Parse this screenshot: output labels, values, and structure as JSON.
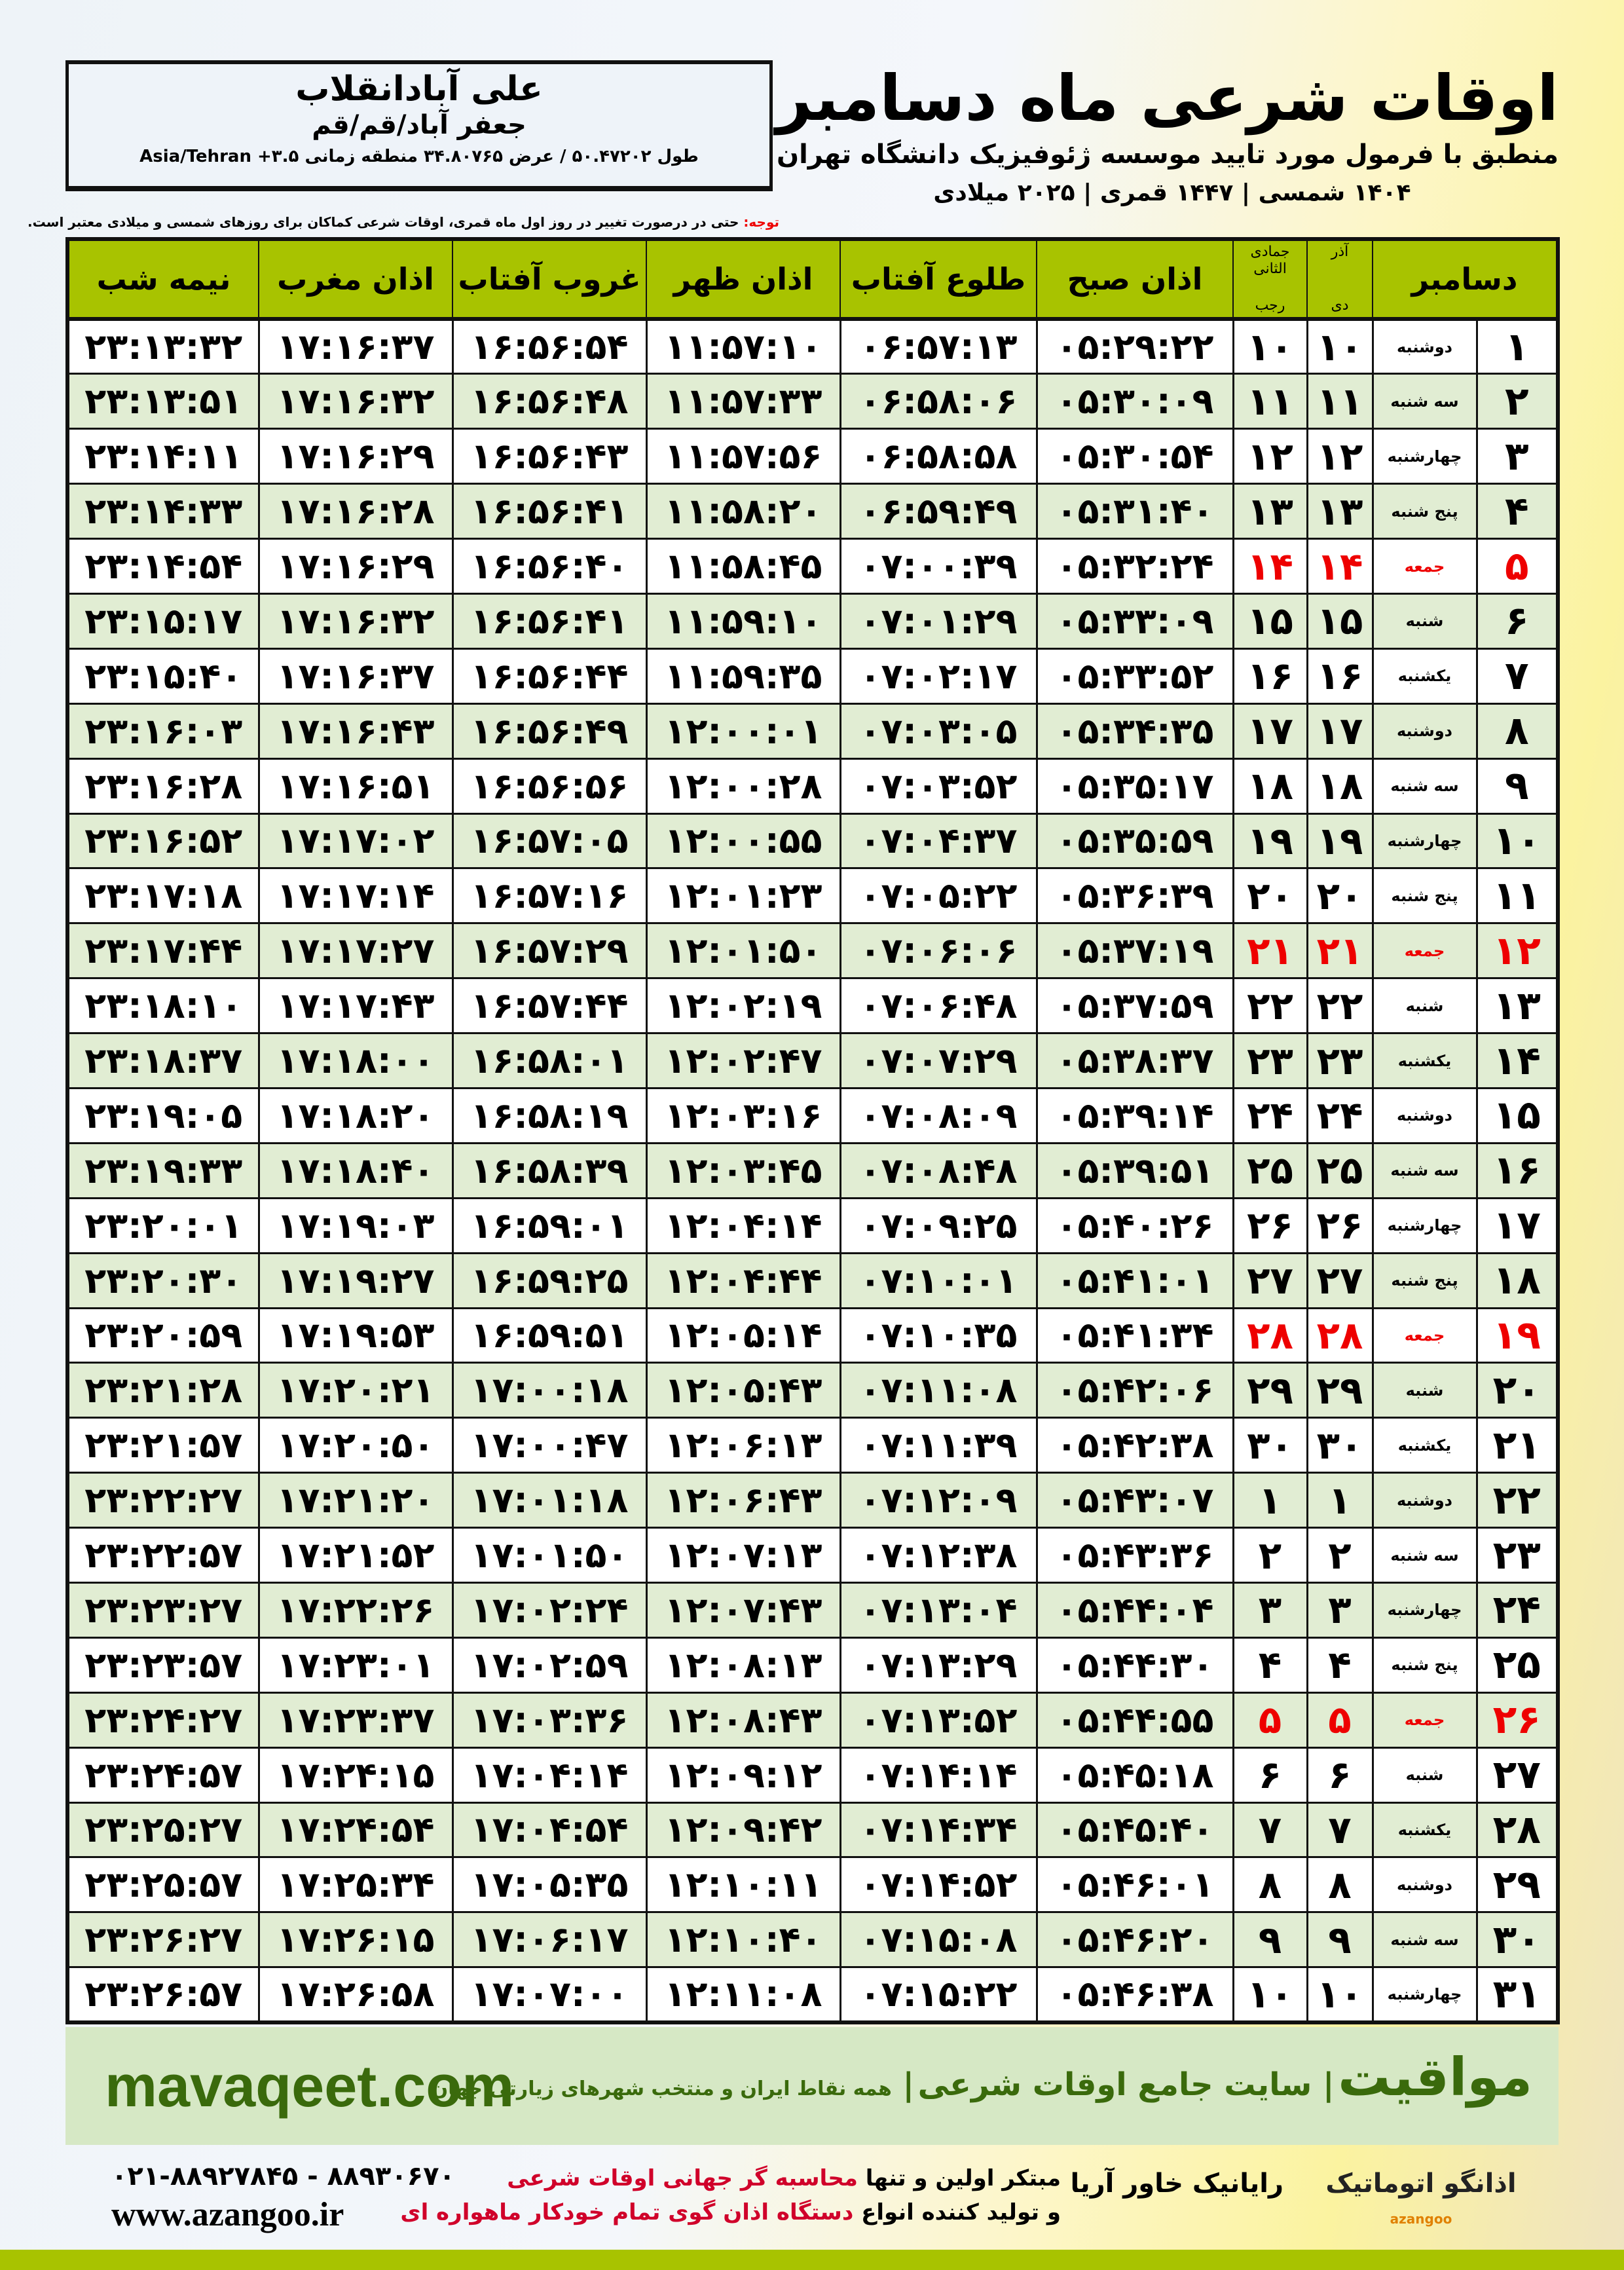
{
  "location": {
    "name": "علی آبادانقلاب",
    "region": "جعفر آباد/قم/قم",
    "coords": "طول ۵۰.۴۷۲۰۲ / عرض ۳۴.۸۰۷۶۵ منطقه زمانی ۳.۵+ Asia/Tehran"
  },
  "header": {
    "title": "اوقات شرعی ماه دسامبر",
    "subtitle": "منطبق با فرمول مورد تایید موسسه ژئوفیزیک دانشگاه تهران",
    "years": "۱۴۰۴ شمسی | ۱۴۴۷ قمری | ۲۰۲۵ میلادی"
  },
  "note": {
    "label": "توجه:",
    "text": "حتی در درصورت تغییر در روز اول ماه قمری، اوقات شرعی کماکان برای روزهای شمسی و میلادی معتبر است."
  },
  "columns": {
    "month": "دسامبر",
    "solar": "آذر",
    "solar2": "دی",
    "lunar": "جمادی الثانی",
    "lunar2": "رجب",
    "fajr": "اذان صبح",
    "sunrise": "طلوع آفتاب",
    "dhuhr": "اذان ظهر",
    "sunset": "غروب آفتاب",
    "maghrib": "اذان مغرب",
    "midnight": "نیمه شب"
  },
  "colors": {
    "header": "#a8c300",
    "alt_row": "#e1edd3",
    "friday": "#e00000",
    "brand": "#3a6a0c"
  },
  "rows": [
    [
      "۱",
      "دوشنبه",
      "۱۰",
      "۱۰",
      "۰۵:۲۹:۲۲",
      "۰۶:۵۷:۱۳",
      "۱۱:۵۷:۱۰",
      "۱۶:۵۶:۵۴",
      "۱۷:۱۶:۳۷",
      "۲۳:۱۳:۳۲"
    ],
    [
      "۲",
      "سه شنبه",
      "۱۱",
      "۱۱",
      "۰۵:۳۰:۰۹",
      "۰۶:۵۸:۰۶",
      "۱۱:۵۷:۳۳",
      "۱۶:۵۶:۴۸",
      "۱۷:۱۶:۳۲",
      "۲۳:۱۳:۵۱"
    ],
    [
      "۳",
      "چهارشنبه",
      "۱۲",
      "۱۲",
      "۰۵:۳۰:۵۴",
      "۰۶:۵۸:۵۸",
      "۱۱:۵۷:۵۶",
      "۱۶:۵۶:۴۳",
      "۱۷:۱۶:۲۹",
      "۲۳:۱۴:۱۱"
    ],
    [
      "۴",
      "پنج شنبه",
      "۱۳",
      "۱۳",
      "۰۵:۳۱:۴۰",
      "۰۶:۵۹:۴۹",
      "۱۱:۵۸:۲۰",
      "۱۶:۵۶:۴۱",
      "۱۷:۱۶:۲۸",
      "۲۳:۱۴:۳۳"
    ],
    [
      "۵",
      "جمعه",
      "۱۴",
      "۱۴",
      "۰۵:۳۲:۲۴",
      "۰۷:۰۰:۳۹",
      "۱۱:۵۸:۴۵",
      "۱۶:۵۶:۴۰",
      "۱۷:۱۶:۲۹",
      "۲۳:۱۴:۵۴"
    ],
    [
      "۶",
      "شنبه",
      "۱۵",
      "۱۵",
      "۰۵:۳۳:۰۹",
      "۰۷:۰۱:۲۹",
      "۱۱:۵۹:۱۰",
      "۱۶:۵۶:۴۱",
      "۱۷:۱۶:۳۲",
      "۲۳:۱۵:۱۷"
    ],
    [
      "۷",
      "یکشنبه",
      "۱۶",
      "۱۶",
      "۰۵:۳۳:۵۲",
      "۰۷:۰۲:۱۷",
      "۱۱:۵۹:۳۵",
      "۱۶:۵۶:۴۴",
      "۱۷:۱۶:۳۷",
      "۲۳:۱۵:۴۰"
    ],
    [
      "۸",
      "دوشنبه",
      "۱۷",
      "۱۷",
      "۰۵:۳۴:۳۵",
      "۰۷:۰۳:۰۵",
      "۱۲:۰۰:۰۱",
      "۱۶:۵۶:۴۹",
      "۱۷:۱۶:۴۳",
      "۲۳:۱۶:۰۳"
    ],
    [
      "۹",
      "سه شنبه",
      "۱۸",
      "۱۸",
      "۰۵:۳۵:۱۷",
      "۰۷:۰۳:۵۲",
      "۱۲:۰۰:۲۸",
      "۱۶:۵۶:۵۶",
      "۱۷:۱۶:۵۱",
      "۲۳:۱۶:۲۸"
    ],
    [
      "۱۰",
      "چهارشنبه",
      "۱۹",
      "۱۹",
      "۰۵:۳۵:۵۹",
      "۰۷:۰۴:۳۷",
      "۱۲:۰۰:۵۵",
      "۱۶:۵۷:۰۵",
      "۱۷:۱۷:۰۲",
      "۲۳:۱۶:۵۲"
    ],
    [
      "۱۱",
      "پنج شنبه",
      "۲۰",
      "۲۰",
      "۰۵:۳۶:۳۹",
      "۰۷:۰۵:۲۲",
      "۱۲:۰۱:۲۳",
      "۱۶:۵۷:۱۶",
      "۱۷:۱۷:۱۴",
      "۲۳:۱۷:۱۸"
    ],
    [
      "۱۲",
      "جمعه",
      "۲۱",
      "۲۱",
      "۰۵:۳۷:۱۹",
      "۰۷:۰۶:۰۶",
      "۱۲:۰۱:۵۰",
      "۱۶:۵۷:۲۹",
      "۱۷:۱۷:۲۷",
      "۲۳:۱۷:۴۴"
    ],
    [
      "۱۳",
      "شنبه",
      "۲۲",
      "۲۲",
      "۰۵:۳۷:۵۹",
      "۰۷:۰۶:۴۸",
      "۱۲:۰۲:۱۹",
      "۱۶:۵۷:۴۴",
      "۱۷:۱۷:۴۳",
      "۲۳:۱۸:۱۰"
    ],
    [
      "۱۴",
      "یکشنبه",
      "۲۳",
      "۲۳",
      "۰۵:۳۸:۳۷",
      "۰۷:۰۷:۲۹",
      "۱۲:۰۲:۴۷",
      "۱۶:۵۸:۰۱",
      "۱۷:۱۸:۰۰",
      "۲۳:۱۸:۳۷"
    ],
    [
      "۱۵",
      "دوشنبه",
      "۲۴",
      "۲۴",
      "۰۵:۳۹:۱۴",
      "۰۷:۰۸:۰۹",
      "۱۲:۰۳:۱۶",
      "۱۶:۵۸:۱۹",
      "۱۷:۱۸:۲۰",
      "۲۳:۱۹:۰۵"
    ],
    [
      "۱۶",
      "سه شنبه",
      "۲۵",
      "۲۵",
      "۰۵:۳۹:۵۱",
      "۰۷:۰۸:۴۸",
      "۱۲:۰۳:۴۵",
      "۱۶:۵۸:۳۹",
      "۱۷:۱۸:۴۰",
      "۲۳:۱۹:۳۳"
    ],
    [
      "۱۷",
      "چهارشنبه",
      "۲۶",
      "۲۶",
      "۰۵:۴۰:۲۶",
      "۰۷:۰۹:۲۵",
      "۱۲:۰۴:۱۴",
      "۱۶:۵۹:۰۱",
      "۱۷:۱۹:۰۳",
      "۲۳:۲۰:۰۱"
    ],
    [
      "۱۸",
      "پنج شنبه",
      "۲۷",
      "۲۷",
      "۰۵:۴۱:۰۱",
      "۰۷:۱۰:۰۱",
      "۱۲:۰۴:۴۴",
      "۱۶:۵۹:۲۵",
      "۱۷:۱۹:۲۷",
      "۲۳:۲۰:۳۰"
    ],
    [
      "۱۹",
      "جمعه",
      "۲۸",
      "۲۸",
      "۰۵:۴۱:۳۴",
      "۰۷:۱۰:۳۵",
      "۱۲:۰۵:۱۴",
      "۱۶:۵۹:۵۱",
      "۱۷:۱۹:۵۳",
      "۲۳:۲۰:۵۹"
    ],
    [
      "۲۰",
      "شنبه",
      "۲۹",
      "۲۹",
      "۰۵:۴۲:۰۶",
      "۰۷:۱۱:۰۸",
      "۱۲:۰۵:۴۳",
      "۱۷:۰۰:۱۸",
      "۱۷:۲۰:۲۱",
      "۲۳:۲۱:۲۸"
    ],
    [
      "۲۱",
      "یکشنبه",
      "۳۰",
      "۳۰",
      "۰۵:۴۲:۳۸",
      "۰۷:۱۱:۳۹",
      "۱۲:۰۶:۱۳",
      "۱۷:۰۰:۴۷",
      "۱۷:۲۰:۵۰",
      "۲۳:۲۱:۵۷"
    ],
    [
      "۲۲",
      "دوشنبه",
      "۱",
      "۱",
      "۰۵:۴۳:۰۷",
      "۰۷:۱۲:۰۹",
      "۱۲:۰۶:۴۳",
      "۱۷:۰۱:۱۸",
      "۱۷:۲۱:۲۰",
      "۲۳:۲۲:۲۷"
    ],
    [
      "۲۳",
      "سه شنبه",
      "۲",
      "۲",
      "۰۵:۴۳:۳۶",
      "۰۷:۱۲:۳۸",
      "۱۲:۰۷:۱۳",
      "۱۷:۰۱:۵۰",
      "۱۷:۲۱:۵۲",
      "۲۳:۲۲:۵۷"
    ],
    [
      "۲۴",
      "چهارشنبه",
      "۳",
      "۳",
      "۰۵:۴۴:۰۴",
      "۰۷:۱۳:۰۴",
      "۱۲:۰۷:۴۳",
      "۱۷:۰۲:۲۴",
      "۱۷:۲۲:۲۶",
      "۲۳:۲۳:۲۷"
    ],
    [
      "۲۵",
      "پنج شنبه",
      "۴",
      "۴",
      "۰۵:۴۴:۳۰",
      "۰۷:۱۳:۲۹",
      "۱۲:۰۸:۱۳",
      "۱۷:۰۲:۵۹",
      "۱۷:۲۳:۰۱",
      "۲۳:۲۳:۵۷"
    ],
    [
      "۲۶",
      "جمعه",
      "۵",
      "۵",
      "۰۵:۴۴:۵۵",
      "۰۷:۱۳:۵۲",
      "۱۲:۰۸:۴۳",
      "۱۷:۰۳:۳۶",
      "۱۷:۲۳:۳۷",
      "۲۳:۲۴:۲۷"
    ],
    [
      "۲۷",
      "شنبه",
      "۶",
      "۶",
      "۰۵:۴۵:۱۸",
      "۰۷:۱۴:۱۴",
      "۱۲:۰۹:۱۲",
      "۱۷:۰۴:۱۴",
      "۱۷:۲۴:۱۵",
      "۲۳:۲۴:۵۷"
    ],
    [
      "۲۸",
      "یکشنبه",
      "۷",
      "۷",
      "۰۵:۴۵:۴۰",
      "۰۷:۱۴:۳۴",
      "۱۲:۰۹:۴۲",
      "۱۷:۰۴:۵۴",
      "۱۷:۲۴:۵۴",
      "۲۳:۲۵:۲۷"
    ],
    [
      "۲۹",
      "دوشنبه",
      "۸",
      "۸",
      "۰۵:۴۶:۰۱",
      "۰۷:۱۴:۵۲",
      "۱۲:۱۰:۱۱",
      "۱۷:۰۵:۳۵",
      "۱۷:۲۵:۳۴",
      "۲۳:۲۵:۵۷"
    ],
    [
      "۳۰",
      "سه شنبه",
      "۹",
      "۹",
      "۰۵:۴۶:۲۰",
      "۰۷:۱۵:۰۸",
      "۱۲:۱۰:۴۰",
      "۱۷:۰۶:۱۷",
      "۱۷:۲۶:۱۵",
      "۲۳:۲۶:۲۷"
    ],
    [
      "۳۱",
      "چهارشنبه",
      "۱۰",
      "۱۰",
      "۰۵:۴۶:۳۸",
      "۰۷:۱۵:۲۲",
      "۱۲:۱۱:۰۸",
      "۱۷:۰۷:۰۰",
      "۱۷:۲۶:۵۸",
      "۲۳:۲۶:۵۷"
    ]
  ],
  "footer": {
    "site": "mavaqeet.com",
    "brand": "مواقیت",
    "slogan": "سایت جامع اوقات شرعی",
    "sub": "همه نقاط ایران و منتخب شهرهای زیارتی جهان",
    "phone": "۰۲۱-۸۸۹۲۷۸۴۵ - ۸۸۹۳۰۶۷۰",
    "url": "www.azangoo.ir",
    "line1a": "مبتکر اولین و تنها",
    "line1b": "محاسبه گر جهانی اوقات شرعی",
    "line2a": "و تولید کننده انواع",
    "line2b": "دستگاه اذان گوی تمام خودکار ماهواره ای",
    "logo_rayanik": "رایانیک خاور آریا",
    "logo_azangoo": "اذانگو اتوماتیک",
    "logo_azangoo_en": "azangoo"
  }
}
